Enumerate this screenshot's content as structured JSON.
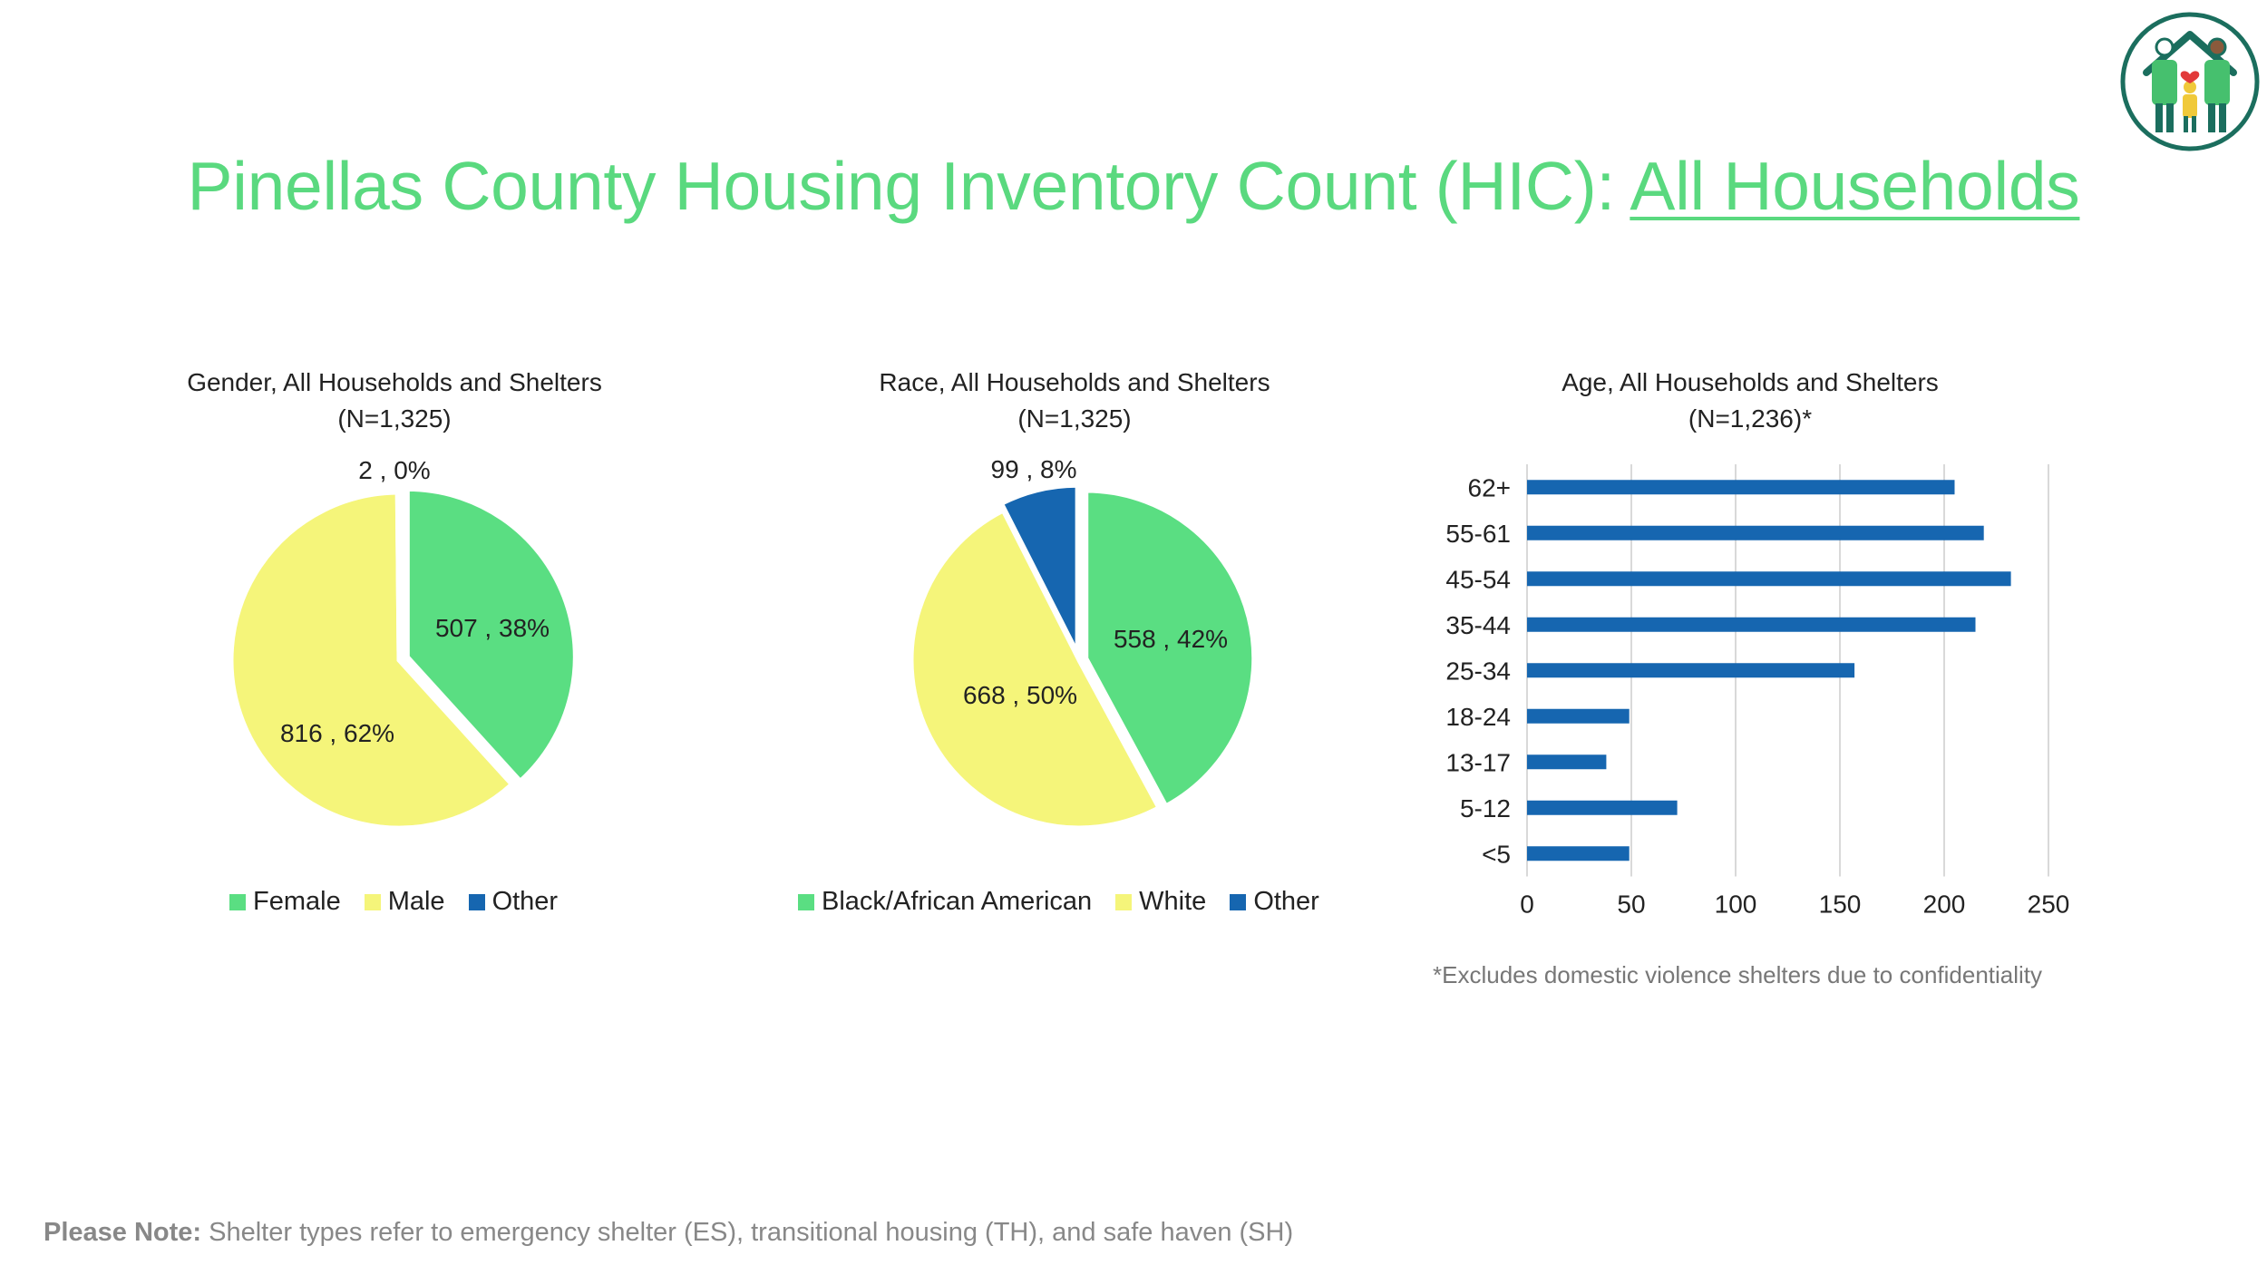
{
  "title": {
    "main": "Pinellas County Housing Inventory Count (HIC): ",
    "underlined": "All Households"
  },
  "colors": {
    "green": "#5ade82",
    "yellow": "#f5f57a",
    "blue": "#1666b0",
    "title": "#5ad97f"
  },
  "chart_data": [
    {
      "type": "pie",
      "title": "Gender, All Households and Shelters",
      "subtitle": "(N=1,325)",
      "legend_position": "bottom",
      "slices": [
        {
          "name": "Female",
          "value": 507,
          "percent": "38%",
          "label": "507 , 38%",
          "color": "#5ade82"
        },
        {
          "name": "Male",
          "value": 816,
          "percent": "62%",
          "label": "816 , 62%",
          "color": "#f5f57a"
        },
        {
          "name": "Other",
          "value": 2,
          "percent": "0%",
          "label": "2 , 0%",
          "color": "#1666b0"
        }
      ]
    },
    {
      "type": "pie",
      "title": "Race, All Households and Shelters",
      "subtitle": "(N=1,325)",
      "legend_position": "bottom",
      "slices": [
        {
          "name": "Black/African American",
          "value": 558,
          "percent": "42%",
          "label": "558 , 42%",
          "color": "#5ade82"
        },
        {
          "name": "White",
          "value": 668,
          "percent": "50%",
          "label": "668 , 50%",
          "color": "#f5f57a"
        },
        {
          "name": "Other",
          "value": 99,
          "percent": "8%",
          "label": "99 , 8%",
          "color": "#1666b0"
        }
      ]
    },
    {
      "type": "bar",
      "orientation": "horizontal",
      "title": "Age, All Households and Shelters",
      "subtitle": "(N=1,236)*",
      "categories": [
        "62+",
        "55-61",
        "45-54",
        "35-44",
        "25-34",
        "18-24",
        "13-17",
        "5-12",
        "<5"
      ],
      "values": [
        205,
        219,
        232,
        215,
        157,
        49,
        38,
        72,
        49
      ],
      "xlim": [
        0,
        250
      ],
      "xticks": [
        "0",
        "50",
        "100",
        "150",
        "200",
        "250"
      ],
      "grid": true,
      "color": "#1666b0",
      "footnote": "*Excludes domestic violence shelters due to confidentiality"
    }
  ],
  "note": {
    "label": "Please Note:",
    "text": " Shelter types refer to emergency shelter (ES), transitional housing (TH), and safe haven (SH)"
  }
}
